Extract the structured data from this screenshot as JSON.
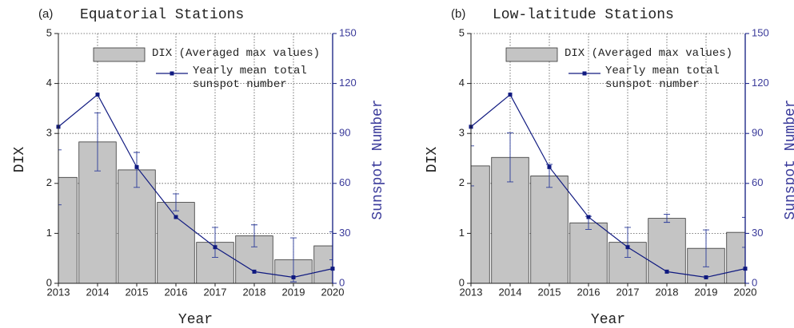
{
  "chart_data": [
    {
      "type": "bar",
      "panel_label": "(a)",
      "title": "Equatorial Stations",
      "x_label": "Year",
      "y_label": "DIX",
      "y2_label": "Sunspot Number",
      "x": [
        2013,
        2014,
        2015,
        2016,
        2017,
        2018,
        2019,
        2020
      ],
      "xlim": [
        2013,
        2020
      ],
      "xticks": [
        2013,
        2014,
        2015,
        2016,
        2017,
        2018,
        2019,
        2020
      ],
      "ylim": [
        0,
        5
      ],
      "yticks": [
        0,
        1,
        2,
        3,
        4,
        5
      ],
      "y2lim": [
        0,
        150
      ],
      "y2ticks": [
        0,
        30,
        60,
        90,
        120,
        150
      ],
      "grid": true,
      "series": [
        {
          "name": "DIX (Averaged max values)",
          "type": "bar",
          "color": "#c4c4c4",
          "values": [
            2.12,
            2.83,
            2.27,
            1.62,
            0.82,
            0.95,
            0.47,
            0.75
          ],
          "errors": [
            0.55,
            0.58,
            0.35,
            0.17,
            0.3,
            0.22,
            0.44,
            0.28
          ]
        },
        {
          "name": "Yearly mean total sunspot number",
          "type": "line",
          "axis": "y2",
          "color": "#101a80",
          "values": [
            94.0,
            113.3,
            69.8,
            39.8,
            21.7,
            7.0,
            3.6,
            8.8
          ]
        }
      ]
    },
    {
      "type": "bar",
      "panel_label": "(b)",
      "title": "Low-latitude Stations",
      "x_label": "Year",
      "y_label": "DIX",
      "y2_label": "Sunspot Number",
      "x": [
        2013,
        2014,
        2015,
        2016,
        2017,
        2018,
        2019,
        2020
      ],
      "xlim": [
        2013,
        2020
      ],
      "xticks": [
        2013,
        2014,
        2015,
        2016,
        2017,
        2018,
        2019,
        2020
      ],
      "ylim": [
        0,
        5
      ],
      "yticks": [
        0,
        1,
        2,
        3,
        4,
        5
      ],
      "y2lim": [
        0,
        150
      ],
      "y2ticks": [
        0,
        30,
        60,
        90,
        120,
        150
      ],
      "grid": true,
      "series": [
        {
          "name": "DIX (Averaged max values)",
          "type": "bar",
          "color": "#c4c4c4",
          "values": [
            2.35,
            2.52,
            2.15,
            1.21,
            0.82,
            1.3,
            0.7,
            1.02
          ],
          "errors": [
            0.4,
            0.49,
            0.23,
            0.13,
            0.3,
            0.08,
            0.37,
            0.3
          ]
        },
        {
          "name": "Yearly mean total sunspot number",
          "type": "line",
          "axis": "y2",
          "color": "#101a80",
          "values": [
            94.0,
            113.3,
            69.8,
            39.8,
            21.7,
            7.0,
            3.6,
            8.8
          ]
        }
      ]
    }
  ]
}
